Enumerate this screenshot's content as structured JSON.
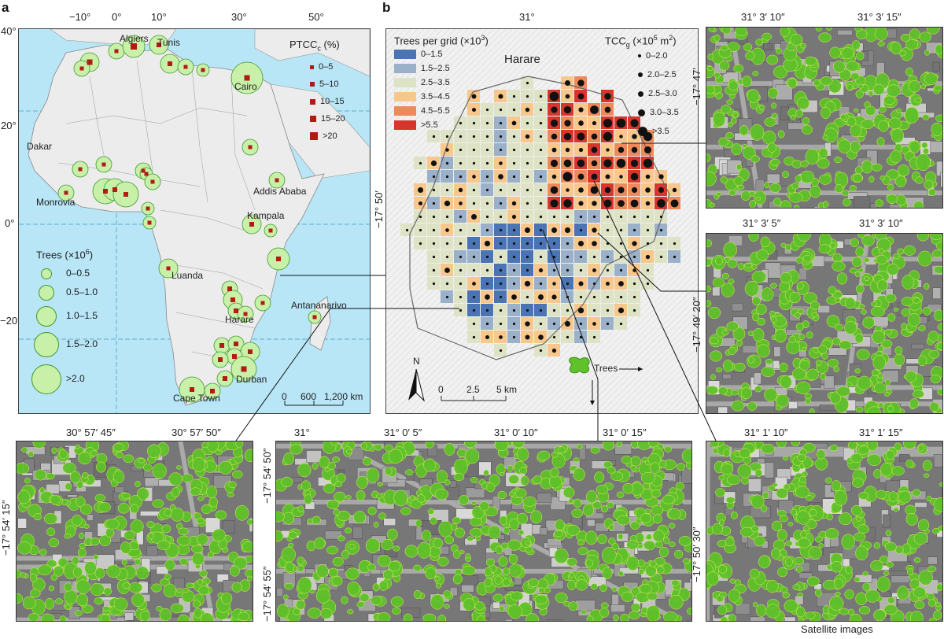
{
  "panel_a": {
    "label": "a",
    "lon_ticks": [
      "−10°",
      "0°",
      "10°",
      "30°",
      "50°"
    ],
    "lat_ticks": [
      "40°",
      "20°",
      "0°",
      "−20°"
    ],
    "ptcc_title": "PTCC",
    "ptcc_sub": "c",
    "ptcc_unit": " (%)",
    "ptcc_classes": [
      "0–5",
      "5–10",
      "10–15",
      "15–20",
      ">20"
    ],
    "trees_title": "Trees (×10",
    "trees_sup": "6",
    "trees_close": ")",
    "trees_classes": [
      "0–0.5",
      "0.5–1.0",
      "1.0–1.5",
      "1.5–2.0",
      ">2.0"
    ],
    "scale_labels": [
      "0",
      "600",
      "1,200 km"
    ],
    "cities": [
      "Algiers",
      "Tunis",
      "Cairo",
      "Dakar",
      "Addis Ababa",
      "Monrovia",
      "Kampala",
      "Luanda",
      "Harare",
      "Antananarivo",
      "Durban",
      "Cape Town"
    ]
  },
  "panel_b": {
    "label": "b",
    "lon_tick": "31°",
    "lat_tick": "−17° 50′",
    "city": "Harare",
    "grid_title": "Trees per grid (×10",
    "grid_sup": "3",
    "grid_close": ")",
    "grid_classes": [
      {
        "label": "0–1.5",
        "color": "#4a74b4"
      },
      {
        "label": "1.5–2.5",
        "color": "#9bb1c9"
      },
      {
        "label": "2.5–3.5",
        "color": "#dde3c4"
      },
      {
        "label": "3.5–4.5",
        "color": "#f8c78c"
      },
      {
        "label": "4.5–5.5",
        "color": "#ee8a5a"
      },
      {
        "label": ">5.5",
        "color": "#d8352d"
      }
    ],
    "tcc_title": "TCC",
    "tcc_sub": "g",
    "tcc_unit": " (×10",
    "tcc_sup": "5",
    "tcc_close": " m",
    "tcc_sup2": "2",
    "tcc_end": ")",
    "tcc_classes": [
      "0–2.0",
      "2.0–2.5",
      "2.5–3.0",
      "3.0–3.5",
      ">3.5"
    ],
    "north": "N",
    "scale_labels": [
      "0",
      "2.5",
      "5 km"
    ],
    "trees_legend": "Trees"
  },
  "satellite": {
    "right_top": {
      "lon": [
        "31° 3′ 10″",
        "31° 3′ 15″"
      ],
      "lat": "−17° 47′"
    },
    "right_mid": {
      "lon": [
        "31° 3′ 5″",
        "31° 3′ 10″"
      ],
      "lat": "−17° 49′ 20″"
    },
    "bottom_left": {
      "lon": [
        "30° 57′ 45″",
        "30° 57′ 50″"
      ],
      "lat": "−17° 54′ 15″"
    },
    "bottom_mid": {
      "lon": [
        "31°",
        "31° 0′ 5″",
        "31° 0′ 10″",
        "31° 0′ 15″"
      ],
      "lat": [
        "−17° 54′ 50″",
        "−17° 54′ 55″"
      ]
    },
    "bottom_right": {
      "lon": [
        "31° 1′ 10″",
        "31° 1′ 15″"
      ],
      "lat": "−17° 50′ 30″"
    },
    "caption": "Satellite images"
  },
  "colors": {
    "ocean": "#b8e6f6",
    "land": "#ececec",
    "tree_circle": "#c8f0a8",
    "tree_edge": "#3f9a2e",
    "square": "#b01c14",
    "tree_canopy": "#5fc22a"
  }
}
